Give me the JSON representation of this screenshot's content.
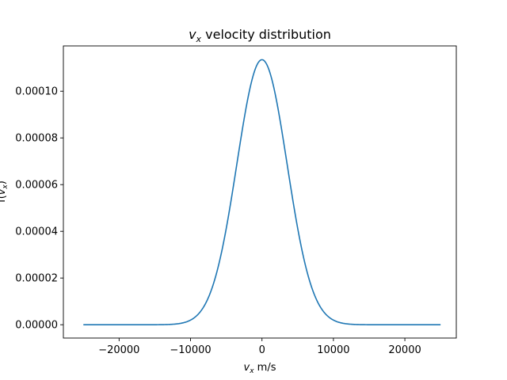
{
  "chart_data": {
    "type": "line",
    "title": "v_x velocity distribution",
    "title_parts": {
      "var": "v",
      "sub": "x",
      "rest": " velocity distribution"
    },
    "xlabel": "v_x m/s",
    "xlabel_parts": {
      "var": "v",
      "sub": "x",
      "rest": " m/s"
    },
    "ylabel": "f(v_x)",
    "ylabel_parts": {
      "pre": "f(",
      "var": "v",
      "sub": "x",
      "post": ")"
    },
    "xlim": [
      -27800,
      27200
    ],
    "ylim": [
      -5.7e-06,
      0.0001194
    ],
    "xticks": [
      -20000,
      -10000,
      0,
      10000,
      20000
    ],
    "xtick_labels": [
      "−20000",
      "−10000",
      "0",
      "10000",
      "20000"
    ],
    "yticks": [
      0.0,
      2e-05,
      4e-05,
      6e-05,
      8e-05,
      0.0001
    ],
    "ytick_labels": [
      "0.00000",
      "0.00002",
      "0.00004",
      "0.00006",
      "0.00008",
      "0.00010"
    ],
    "grid": false,
    "legend": "none",
    "series": [
      {
        "color": "#1f77b4",
        "x_range": [
          -25000,
          25000
        ],
        "peak": 0.0001135,
        "sigma": 3515
      }
    ]
  }
}
